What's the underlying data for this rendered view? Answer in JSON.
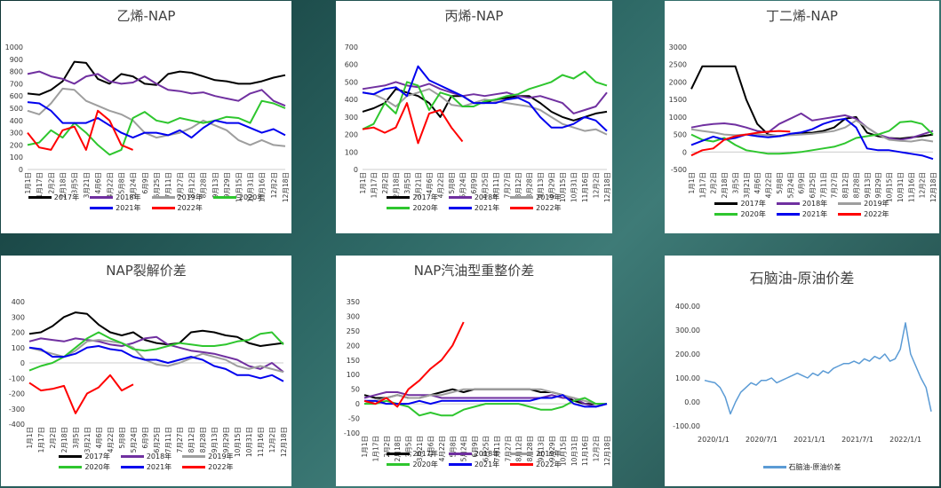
{
  "colors": {
    "2017": "#000000",
    "2018": "#7030a0",
    "2019": "#9e9e9e",
    "2020": "#2ec62e",
    "2021": "#0000ee",
    "2022": "#ff0000",
    "spread": "#5b9bd5"
  },
  "month_ticks": [
    "1月1日",
    "1月17日",
    "2月2日",
    "2月18日",
    "3月5日",
    "3月21日",
    "4月6日",
    "4月22日",
    "5月8日",
    "5月24日",
    "6月9日",
    "6月25日",
    "7月11日",
    "7月27日",
    "8月12日",
    "8月28日",
    "9月13日",
    "9月29日",
    "10月15日",
    "10月31日",
    "11月16日",
    "12月2日",
    "12月18日"
  ],
  "panels": [
    {
      "id": "ethylene",
      "title": "乙烯-NAP",
      "legend": [
        "2017年",
        "2018年",
        "2019年",
        "2020年",
        "2021年",
        "2022年"
      ]
    },
    {
      "id": "propylene",
      "title": "丙烯-NAP",
      "legend": [
        "2017年",
        "2018年",
        "2019年",
        "2020年",
        "2021年",
        "2022年"
      ]
    },
    {
      "id": "butadiene",
      "title": "丁二烯-NAP",
      "legend": [
        "2017年",
        "2018年",
        "2019年",
        "2020年",
        "2021年",
        "2022年"
      ]
    },
    {
      "id": "cracking",
      "title": "NAP裂解价差",
      "legend": [
        "2017年",
        "2018年",
        "2019年",
        "2020年",
        "2021年",
        "2022年"
      ]
    },
    {
      "id": "reforming",
      "title": "NAP汽油型重整价差",
      "legend": [
        "2017年",
        "2018年",
        "2019年",
        "2020年",
        "2021年",
        "2022年"
      ]
    },
    {
      "id": "crude",
      "title": "石脑油-原油价差",
      "legend": [
        "石脑油-原油价差"
      ]
    }
  ],
  "chart_data": [
    {
      "type": "line",
      "title": "乙烯-NAP",
      "ylim": [
        0,
        1000
      ],
      "yticks": [
        0,
        100,
        200,
        300,
        400,
        500,
        600,
        700,
        800,
        900,
        1000
      ],
      "series": [
        {
          "name": "2017年",
          "values": [
            620,
            610,
            650,
            720,
            880,
            870,
            740,
            700,
            780,
            760,
            700,
            690,
            780,
            800,
            790,
            760,
            730,
            720,
            700,
            700,
            720,
            750,
            770
          ]
        },
        {
          "name": "2018年",
          "values": [
            780,
            800,
            760,
            740,
            700,
            760,
            780,
            720,
            700,
            710,
            760,
            700,
            650,
            640,
            620,
            630,
            600,
            580,
            560,
            620,
            650,
            560,
            520
          ]
        },
        {
          "name": "2019年",
          "values": [
            480,
            450,
            540,
            660,
            650,
            560,
            520,
            480,
            450,
            400,
            300,
            260,
            280,
            300,
            340,
            400,
            360,
            320,
            240,
            200,
            240,
            200,
            190
          ]
        },
        {
          "name": "2020年",
          "values": [
            200,
            220,
            320,
            260,
            380,
            300,
            200,
            120,
            160,
            420,
            470,
            400,
            380,
            420,
            400,
            380,
            400,
            430,
            420,
            380,
            560,
            540,
            500
          ]
        },
        {
          "name": "2021年",
          "values": [
            550,
            540,
            480,
            380,
            380,
            380,
            420,
            360,
            300,
            260,
            300,
            300,
            280,
            320,
            260,
            340,
            400,
            380,
            380,
            340,
            300,
            330,
            280
          ]
        },
        {
          "name": "2022年",
          "values": [
            300,
            180,
            160,
            320,
            350,
            160,
            480,
            400,
            200,
            160
          ]
        }
      ]
    },
    {
      "type": "line",
      "title": "丙烯-NAP",
      "ylim": [
        0,
        700
      ],
      "yticks": [
        0,
        100,
        200,
        300,
        400,
        500,
        600,
        700
      ],
      "series": [
        {
          "name": "2017年",
          "values": [
            330,
            350,
            380,
            460,
            440,
            420,
            380,
            300,
            420,
            420,
            380,
            380,
            400,
            410,
            420,
            420,
            380,
            330,
            300,
            280,
            300,
            320,
            330
          ]
        },
        {
          "name": "2018年",
          "values": [
            460,
            470,
            480,
            500,
            480,
            470,
            490,
            460,
            440,
            420,
            430,
            420,
            430,
            440,
            420,
            410,
            420,
            400,
            380,
            320,
            340,
            360,
            440
          ]
        },
        {
          "name": "2019年",
          "values": [
            440,
            430,
            400,
            360,
            420,
            440,
            460,
            420,
            370,
            360,
            380,
            400,
            390,
            380,
            370,
            360,
            340,
            300,
            260,
            240,
            220,
            230,
            200
          ]
        },
        {
          "name": "2020年",
          "values": [
            230,
            260,
            380,
            320,
            500,
            480,
            340,
            440,
            420,
            360,
            360,
            390,
            400,
            420,
            430,
            460,
            480,
            500,
            540,
            520,
            560,
            500,
            480
          ]
        },
        {
          "name": "2021年",
          "values": [
            440,
            430,
            460,
            470,
            420,
            590,
            510,
            480,
            450,
            420,
            380,
            380,
            380,
            400,
            410,
            380,
            300,
            240,
            240,
            260,
            300,
            280,
            220
          ]
        },
        {
          "name": "2022年",
          "values": [
            230,
            240,
            210,
            240,
            380,
            150,
            320,
            340,
            240,
            160
          ]
        }
      ]
    },
    {
      "type": "line",
      "title": "丁二烯-NAP",
      "ylim": [
        -500,
        3000
      ],
      "yticks": [
        -500,
        0,
        500,
        1000,
        1500,
        2000,
        2500,
        3000
      ],
      "series": [
        {
          "name": "2017年",
          "values": [
            1800,
            2450,
            2450,
            2450,
            2450,
            1500,
            800,
            500,
            450,
            500,
            550,
            550,
            600,
            700,
            950,
            1000,
            550,
            450,
            400,
            380,
            420,
            450,
            500
          ]
        },
        {
          "name": "2018年",
          "values": [
            700,
            760,
            800,
            820,
            780,
            700,
            600,
            560,
            800,
            950,
            1100,
            900,
            950,
            1000,
            1050,
            950,
            700,
            500,
            400,
            350,
            400,
            500,
            600
          ]
        },
        {
          "name": "2019年",
          "values": [
            650,
            600,
            560,
            500,
            480,
            500,
            500,
            480,
            460,
            480,
            500,
            520,
            560,
            600,
            700,
            900,
            700,
            500,
            350,
            320,
            300,
            350,
            300
          ]
        },
        {
          "name": "2020年",
          "values": [
            500,
            350,
            300,
            400,
            200,
            50,
            0,
            -50,
            -50,
            -30,
            0,
            50,
            100,
            150,
            250,
            400,
            450,
            500,
            600,
            850,
            880,
            800,
            500
          ]
        },
        {
          "name": "2021年",
          "values": [
            200,
            320,
            440,
            350,
            400,
            500,
            450,
            420,
            450,
            520,
            560,
            650,
            800,
            900,
            950,
            700,
            100,
            50,
            50,
            0,
            -50,
            -100,
            -200
          ]
        },
        {
          "name": "2022年",
          "values": [
            -100,
            50,
            100,
            350,
            450,
            500,
            550,
            580,
            600,
            580
          ]
        }
      ]
    },
    {
      "type": "line",
      "title": "NAP裂解价差",
      "ylim": [
        -400,
        400
      ],
      "yticks": [
        -400,
        -300,
        -200,
        -100,
        0,
        100,
        200,
        300,
        400
      ],
      "series": [
        {
          "name": "2017年",
          "values": [
            190,
            200,
            240,
            300,
            330,
            320,
            250,
            200,
            180,
            200,
            150,
            130,
            120,
            130,
            200,
            210,
            200,
            180,
            170,
            130,
            110,
            120,
            130
          ]
        },
        {
          "name": "2018年",
          "values": [
            140,
            160,
            150,
            140,
            160,
            150,
            140,
            120,
            110,
            130,
            160,
            170,
            120,
            100,
            80,
            70,
            60,
            40,
            20,
            -20,
            -40,
            0,
            -60
          ]
        },
        {
          "name": "2019年",
          "values": [
            100,
            80,
            60,
            40,
            80,
            140,
            150,
            140,
            130,
            100,
            20,
            -10,
            -20,
            0,
            30,
            60,
            40,
            20,
            -20,
            -40,
            -20,
            -40,
            -60
          ]
        },
        {
          "name": "2020年",
          "values": [
            -50,
            -20,
            0,
            40,
            100,
            160,
            200,
            160,
            130,
            90,
            80,
            90,
            110,
            130,
            120,
            110,
            110,
            120,
            140,
            150,
            190,
            200,
            120
          ]
        },
        {
          "name": "2021年",
          "values": [
            100,
            90,
            40,
            40,
            60,
            100,
            110,
            90,
            80,
            40,
            20,
            20,
            0,
            20,
            40,
            20,
            -20,
            -40,
            -80,
            -80,
            -100,
            -80,
            -120
          ]
        },
        {
          "name": "2022年",
          "values": [
            -130,
            -180,
            -170,
            -150,
            -330,
            -200,
            -160,
            -80,
            -180,
            -140
          ]
        }
      ]
    },
    {
      "type": "line",
      "title": "NAP汽油型重整价差",
      "ylim": [
        -100,
        350
      ],
      "yticks": [
        -100,
        -50,
        0,
        50,
        100,
        150,
        200,
        250,
        300,
        350
      ],
      "series": [
        {
          "name": "2017年",
          "values": [
            30,
            20,
            20,
            30,
            20,
            20,
            30,
            40,
            50,
            40,
            50,
            50,
            50,
            50,
            50,
            50,
            40,
            40,
            30,
            10,
            0,
            0,
            0
          ]
        },
        {
          "name": "2018年",
          "values": [
            20,
            30,
            40,
            40,
            30,
            30,
            30,
            20,
            20,
            20,
            20,
            20,
            20,
            20,
            20,
            20,
            20,
            30,
            20,
            20,
            0,
            -10,
            0
          ]
        },
        {
          "name": "2019年",
          "values": [
            0,
            10,
            20,
            30,
            20,
            20,
            30,
            30,
            40,
            50,
            50,
            50,
            50,
            50,
            50,
            50,
            50,
            40,
            30,
            20,
            10,
            0,
            0
          ]
        },
        {
          "name": "2020年",
          "values": [
            0,
            0,
            10,
            0,
            -10,
            -40,
            -30,
            -40,
            -40,
            -20,
            -10,
            0,
            0,
            0,
            0,
            -10,
            -20,
            -20,
            -10,
            10,
            20,
            0,
            0
          ]
        },
        {
          "name": "2021年",
          "values": [
            10,
            10,
            0,
            0,
            0,
            10,
            0,
            10,
            10,
            10,
            10,
            10,
            10,
            10,
            10,
            10,
            20,
            20,
            30,
            0,
            -10,
            -10,
            0
          ]
        },
        {
          "name": "2022年",
          "values": [
            10,
            0,
            20,
            -10,
            50,
            80,
            120,
            150,
            200,
            280
          ]
        }
      ]
    },
    {
      "type": "line",
      "title": "石脑油-原油价差",
      "ylim": [
        -100,
        400
      ],
      "yticks": [
        "400.00",
        "300.00",
        "200.00",
        "100.00",
        "0.00",
        "-100.00"
      ],
      "x_ticks": [
        "2020/1/1",
        "2020/7/1",
        "2021/1/1",
        "2021/7/1",
        "2022/1/1"
      ],
      "series": [
        {
          "name": "石脑油-原油价差",
          "values": [
            90,
            85,
            80,
            60,
            20,
            -50,
            0,
            40,
            60,
            80,
            70,
            90,
            90,
            100,
            80,
            90,
            100,
            110,
            120,
            110,
            100,
            120,
            110,
            130,
            120,
            140,
            150,
            160,
            160,
            170,
            160,
            180,
            170,
            190,
            180,
            200,
            170,
            180,
            220,
            330,
            200,
            150,
            100,
            60,
            -40
          ]
        }
      ]
    }
  ]
}
